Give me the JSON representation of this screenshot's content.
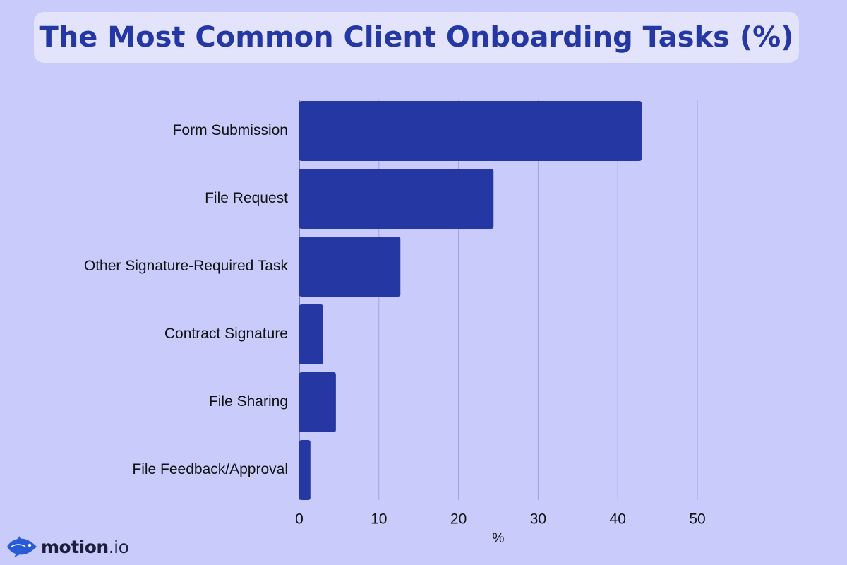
{
  "header": {
    "title": "The Most Common Client Onboarding Tasks (%)"
  },
  "brand": {
    "logo_text": "motion",
    "logo_suffix": ".io",
    "logo_icon": "fish-icon"
  },
  "colors": {
    "background": "#c9ccfb",
    "title_box": "#e3e4fb",
    "title_text": "#2437a3",
    "bar": "#2437a3",
    "gridline": "#9ea3e0",
    "label_text": "#111111"
  },
  "chart_data": {
    "type": "bar",
    "orientation": "horizontal",
    "categories": [
      "Form Submission",
      "File Request",
      "Other Signature-Required Task",
      "Contract Signature",
      "File Sharing",
      "File Feedback/Approval"
    ],
    "values": [
      43,
      24.4,
      12.7,
      3,
      4.6,
      1.4
    ],
    "title": "The Most Common Client Onboarding Tasks (%)",
    "xlabel": "%",
    "ylabel": "",
    "xlim": [
      0,
      50
    ],
    "xticks": [
      0,
      10,
      20,
      30,
      40,
      50
    ],
    "grid": true
  }
}
